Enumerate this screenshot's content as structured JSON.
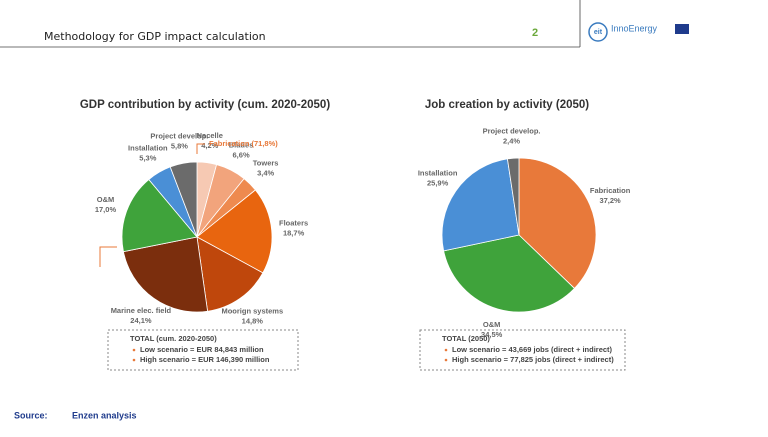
{
  "header": {
    "title": "Methodology for GDP impact calculation",
    "page_number": "2",
    "logo_text": "InnoEnergy"
  },
  "chart_data": [
    {
      "type": "pie",
      "title": "GDP contribution by activity (cum. 2020-2050)",
      "categories": [
        "Nacelle",
        "Blades",
        "Towers",
        "Floaters",
        "Moorign systems",
        "Marine elec. field",
        "O&M",
        "Installation",
        "Project develop."
      ],
      "values": [
        4.2,
        6.6,
        3.4,
        18.7,
        14.8,
        24.1,
        17.0,
        5.3,
        5.8
      ],
      "value_labels": [
        "4,2%",
        "6,6%",
        "3,4%",
        "18,7%",
        "14,8%",
        "24,1%",
        "17,0%",
        "5,3%",
        "5,8%"
      ],
      "colors": [
        "#f6c9b3",
        "#f2a47c",
        "#ee8a4f",
        "#e8650f",
        "#bf470c",
        "#7b2e0d",
        "#3fa33b",
        "#4a8fd6",
        "#6b6b6b"
      ],
      "annotation": "Fabrication (71,8%)",
      "note": {
        "title": "TOTAL (cum. 2020-2050)",
        "items": [
          "Low scenario = EUR 84,843 million",
          "High scenario = EUR 146,390 million"
        ]
      }
    },
    {
      "type": "pie",
      "title": "Job creation by activity (2050)",
      "categories": [
        "Fabrication",
        "O&M",
        "Installation",
        "Project develop."
      ],
      "values": [
        37.2,
        34.5,
        25.9,
        2.4
      ],
      "value_labels": [
        "37,2%",
        "34,5%",
        "25,9%",
        "2,4%"
      ],
      "colors": [
        "#e8793a",
        "#3fa33b",
        "#4a8fd6",
        "#6b6b6b"
      ],
      "note": {
        "title": "TOTAL (2050)",
        "items": [
          "Low scenario = 43,669 jobs (direct + indirect)",
          "High scenario = 77,825 jobs (direct + indirect)"
        ]
      }
    }
  ],
  "source": {
    "label": "Source:",
    "text": "Enzen analysis"
  }
}
